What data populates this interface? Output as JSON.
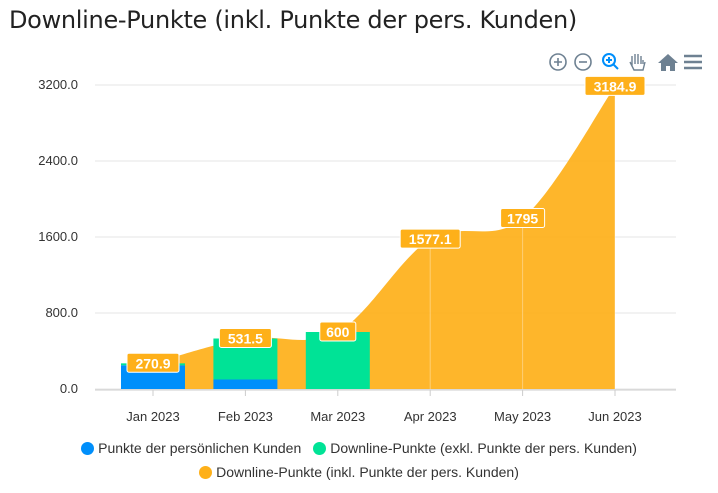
{
  "title": "Downline-Punkte (inkl. Punkte der pers. Kunden)",
  "toolbar": [
    "zoom-in-icon",
    "zoom-out-icon",
    "selection-zoom-icon",
    "pan-hand-icon",
    "home-reset-icon",
    "menu-icon"
  ],
  "chart_data": {
    "type": "bar+area",
    "categories": [
      "Jan 2023",
      "Feb 2023",
      "Mar 2023",
      "Apr 2023",
      "May 2023",
      "Jun 2023"
    ],
    "ylim": [
      0,
      3200
    ],
    "yticks": [
      "0.0",
      "800.0",
      "1600.0",
      "2400.0",
      "3200.0"
    ],
    "grid": true,
    "legend_placement": "bottom",
    "series": [
      {
        "name": "Punkte der persönlichen Kunden",
        "type": "bar",
        "color": "#008FFB",
        "values": [
          250,
          100,
          0,
          0,
          0,
          0
        ]
      },
      {
        "name": "Downline-Punkte (exkl. Punkte der pers. Kunden)",
        "type": "bar",
        "color": "#00E396",
        "values": [
          20,
          431.5,
          600,
          0,
          0,
          0
        ]
      },
      {
        "name": "Downline-Punkte (inkl. Punkte der pers. Kunden)",
        "type": "area",
        "color": "#FEB019",
        "values": [
          270.9,
          531.5,
          600,
          1577.1,
          1795,
          3184.9
        ],
        "labels": [
          "270.9",
          "531.5",
          "600",
          "1577.1",
          "1795",
          "3184.9"
        ]
      }
    ]
  }
}
